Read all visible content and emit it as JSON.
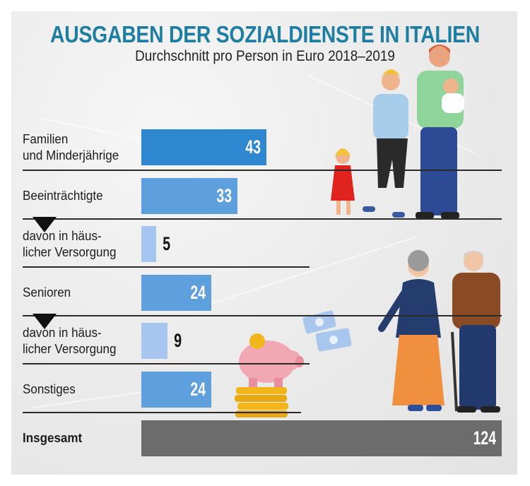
{
  "title": "AUSGABEN DER SOZIALDIENSTE IN ITALIEN",
  "subtitle": "Durchschnitt pro Person in Euro 2018–2019",
  "colors": {
    "title": "#1e7ea1",
    "bar_dark": "#2f88cf",
    "bar_mid": "#5e9fdd",
    "bar_light": "#a6c6ef",
    "bar_total": "#6c6c6c",
    "value_on_bar": "#ffffff",
    "value_outside": "#111111"
  },
  "chart_data": {
    "type": "bar",
    "orientation": "horizontal",
    "title": "AUSGABEN DER SOZIALDIENSTE IN ITALIEN",
    "subtitle": "Durchschnitt pro Person in Euro 2018–2019",
    "unit": "Euro",
    "categories": [
      "Familien\nund Minderjährige",
      "Beeinträchtigte",
      "davon in häus-\nlicher Versorgung",
      "Senioren",
      "davon in häus-\nlicher Versorgung",
      "Sonstiges",
      "Insgesamt"
    ],
    "values": [
      43,
      33,
      5,
      24,
      9,
      24,
      124
    ],
    "value_labels": [
      "43",
      "33",
      "5",
      "24",
      "9",
      "24",
      "124"
    ],
    "row_kind": [
      "main",
      "main",
      "sub",
      "main",
      "sub",
      "main",
      "total"
    ],
    "sub_of": [
      null,
      null,
      "Beeinträchtigte",
      null,
      "Senioren",
      null,
      null
    ],
    "xlim": [
      0,
      124
    ],
    "grid": false,
    "legend": "none"
  },
  "illustrations": [
    "family-illustration",
    "elderly-couple-illustration",
    "piggy-bank-icon",
    "coin-stack-icon",
    "banknotes-icon"
  ]
}
